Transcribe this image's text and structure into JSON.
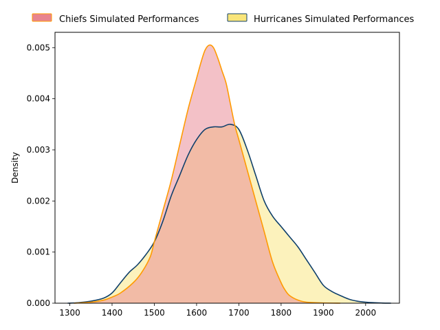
{
  "chart_data": {
    "type": "area",
    "title": "",
    "xlabel": "",
    "ylabel": "Density",
    "xlim": [
      1265,
      2080
    ],
    "ylim": [
      0,
      0.0053
    ],
    "x_ticks": [
      1300,
      1400,
      1500,
      1600,
      1700,
      1800,
      1900,
      2000
    ],
    "y_ticks": [
      0.0,
      0.001,
      0.002,
      0.003,
      0.004,
      0.005
    ],
    "y_tick_labels": [
      "0.000",
      "0.001",
      "0.002",
      "0.003",
      "0.004",
      "0.005"
    ],
    "grid": false,
    "legend_position": "top, above plot",
    "series": [
      {
        "name": "Chiefs Simulated Performances",
        "fill_color": "#e8848f",
        "line_color": "#ff9a00",
        "x": [
          1310,
          1350,
          1380,
          1400,
          1420,
          1450,
          1470,
          1490,
          1500,
          1520,
          1540,
          1560,
          1580,
          1600,
          1610,
          1620,
          1630,
          1640,
          1650,
          1660,
          1670,
          1680,
          1690,
          1700,
          1720,
          1740,
          1760,
          1780,
          1800,
          1810,
          1820,
          1840,
          1860,
          1900,
          1940
        ],
        "y": [
          0.0,
          2e-05,
          6e-05,
          0.00012,
          0.0002,
          0.0004,
          0.0006,
          0.0009,
          0.0012,
          0.0018,
          0.0024,
          0.0031,
          0.0038,
          0.0044,
          0.0047,
          0.00495,
          0.00505,
          0.005,
          0.0048,
          0.00455,
          0.0043,
          0.0039,
          0.0035,
          0.0032,
          0.0026,
          0.002,
          0.0014,
          0.0008,
          0.0004,
          0.00025,
          0.00015,
          6e-05,
          2e-05,
          5e-06,
          0.0
        ]
      },
      {
        "name": "Hurricanes Simulated Performances",
        "fill_color": "#f9e57a",
        "line_color": "#0e3f6b",
        "x": [
          1295,
          1320,
          1350,
          1380,
          1400,
          1420,
          1440,
          1460,
          1480,
          1500,
          1520,
          1540,
          1560,
          1580,
          1600,
          1620,
          1640,
          1660,
          1680,
          1700,
          1720,
          1740,
          1760,
          1780,
          1800,
          1820,
          1840,
          1860,
          1880,
          1900,
          1920,
          1940,
          1960,
          1980,
          2000,
          2020,
          2040,
          2060
        ],
        "y": [
          0.0,
          1e-05,
          4e-05,
          0.0001,
          0.0002,
          0.0004,
          0.0006,
          0.00075,
          0.00095,
          0.0012,
          0.0016,
          0.0021,
          0.0025,
          0.0029,
          0.0032,
          0.0034,
          0.00345,
          0.00345,
          0.0035,
          0.0034,
          0.003,
          0.0025,
          0.002,
          0.0017,
          0.0015,
          0.0013,
          0.0011,
          0.00085,
          0.0006,
          0.00035,
          0.00023,
          0.00015,
          8e-05,
          4e-05,
          2e-05,
          1e-05,
          3e-06,
          0.0
        ]
      }
    ],
    "overlap_fill_color": "#f4bf98"
  }
}
